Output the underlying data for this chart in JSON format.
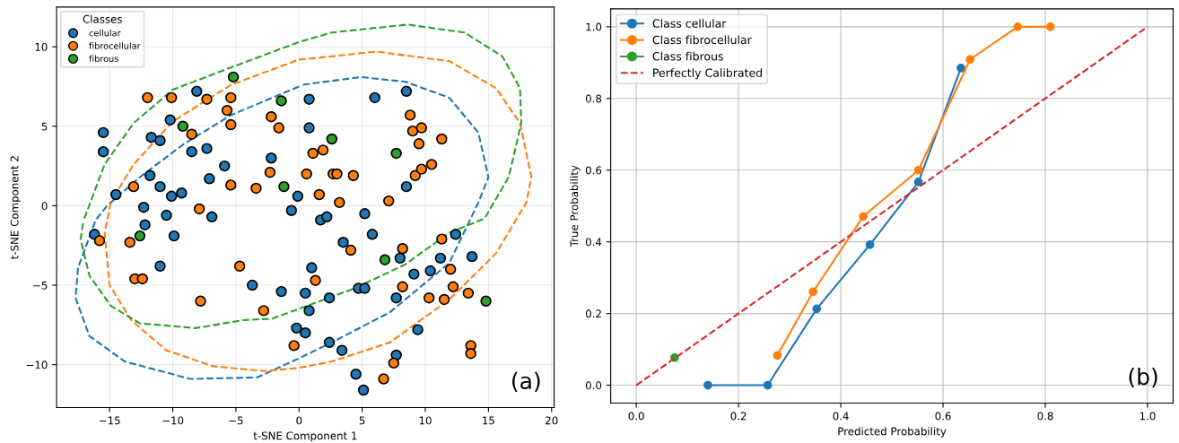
{
  "chart_data": [
    {
      "type": "scatter",
      "xlabel": "t-SNE Component 1",
      "ylabel": "t-SNE Component 2",
      "legend_title": "Classes",
      "legend": "top left",
      "grid": true,
      "marker": "circle",
      "xlim": [
        -19.2,
        20.2
      ],
      "ylim": [
        -12.7,
        12.5
      ],
      "xticks": [
        {
          "value": -15,
          "label": "−15"
        },
        {
          "value": -10,
          "label": "−10"
        },
        {
          "value": -5,
          "label": "−5"
        },
        0,
        5,
        10,
        15,
        20
      ],
      "yticks": [
        {
          "value": -10,
          "label": "−10"
        },
        {
          "value": -5,
          "label": "−5"
        },
        0,
        5,
        10
      ],
      "annotations": [
        "(a)"
      ],
      "series": [
        {
          "name": "cellular",
          "color": "#1f77b4",
          "x": [
            -16.2,
            -15.5,
            -15.5,
            -14.5,
            -11.8,
            -11.7,
            -11.0,
            -10.2,
            -11.0,
            -10.1,
            -9.3,
            -8.1,
            -8.5,
            -7.3,
            -7.1,
            -5.9,
            -12.3,
            -10.5,
            -6.9,
            -12.2,
            -9.9,
            -11.0,
            -3.7,
            -1.4,
            -0.6,
            -0.2,
            1.7,
            2.2,
            5.2,
            5.8,
            3.5,
            1.0,
            0.5,
            2.4,
            0.8,
            4.7,
            5.2,
            0.5,
            2.4,
            3.4,
            4.5,
            5.1,
            7.7,
            7.7,
            8.0,
            9.1,
            10.4,
            11.2,
            12.4,
            13.7,
            9.4,
            0.8,
            6.0,
            8.5,
            0.8,
            -2.2,
            8.5,
            -0.1
          ],
          "values": [
            -1.8,
            4.6,
            3.4,
            0.7,
            1.9,
            4.3,
            4.1,
            5.4,
            1.2,
            0.6,
            0.8,
            7.2,
            3.4,
            3.6,
            1.7,
            2.5,
            -0.1,
            -0.6,
            -0.7,
            -1.2,
            -1.9,
            -3.8,
            -5.0,
            -5.4,
            -0.3,
            -7.7,
            -0.9,
            -0.7,
            -0.5,
            -1.8,
            -2.3,
            -3.9,
            -5.5,
            -5.8,
            -6.6,
            -5.2,
            -5.2,
            -8.0,
            -8.6,
            -9.1,
            -10.6,
            -11.6,
            -9.4,
            -5.8,
            -3.3,
            -4.3,
            -4.1,
            -3.3,
            -1.8,
            -3.2,
            -7.8,
            6.7,
            6.8,
            7.2,
            4.9,
            3.0,
            1.2,
            0.6
          ]
        },
        {
          "name": "fibrocellular",
          "color": "#ff7f0e",
          "x": [
            -12.0,
            -10.1,
            -7.3,
            -5.4,
            -5.7,
            -5.4,
            -8.5,
            -13.1,
            -5.4,
            -3.4,
            -7.9,
            -2.2,
            -1.6,
            -2.3,
            -15.8,
            -13.4,
            -13.0,
            -12.4,
            -7.8,
            -4.7,
            -2.8,
            -0.4,
            1.1,
            1.9,
            0.6,
            2.7,
            3.0,
            4.3,
            1.6,
            3.2,
            7.1,
            8.8,
            9.0,
            9.7,
            9.5,
            11.3,
            9.2,
            9.7,
            10.5,
            4.1,
            8.2,
            1.3,
            8.2,
            11.3,
            12.0,
            12.2,
            10.3,
            11.5,
            13.4,
            13.6,
            13.6,
            7.5,
            6.7
          ],
          "values": [
            6.8,
            6.8,
            6.7,
            6.8,
            6.0,
            5.1,
            4.5,
            1.2,
            1.3,
            1.1,
            -0.2,
            5.6,
            4.9,
            2.1,
            -2.2,
            -2.3,
            -4.6,
            -4.6,
            -6.0,
            -3.8,
            -6.6,
            -8.8,
            3.3,
            3.5,
            2.0,
            2.0,
            2.0,
            1.9,
            0.7,
            0.2,
            0.3,
            5.7,
            4.7,
            4.9,
            3.9,
            4.2,
            1.9,
            2.3,
            2.6,
            -2.8,
            -2.7,
            -4.7,
            -5.1,
            -2.1,
            -4.0,
            -5.1,
            -5.8,
            -5.9,
            -5.5,
            -8.8,
            -9.3,
            -9.9,
            -10.9
          ]
        },
        {
          "name": "fibrous",
          "color": "#2ca02c",
          "x": [
            -5.2,
            -9.2,
            -1.4,
            -1.2,
            2.6,
            7.7,
            -12.6,
            6.8,
            14.8
          ],
          "values": [
            8.1,
            5.0,
            6.6,
            1.2,
            4.2,
            3.3,
            -1.9,
            -3.4,
            -6.0
          ]
        },
        {
          "type": "line",
          "line_style": "dashed",
          "marker": "none",
          "color": "#1f77b4",
          "x": [
            0.0,
            -5.4,
            -9.1,
            -12.6,
            -15.2,
            -16.1,
            -17.5,
            -17.7,
            -16.6,
            -13.8,
            -8.6,
            -3.3,
            0.0,
            2.6,
            7.2,
            11.9,
            14.2,
            15.0,
            14.2,
            11.9,
            8.4,
            4.9,
            0.2
          ],
          "values": [
            7.5,
            5.7,
            3.9,
            1.8,
            0.0,
            -0.9,
            -3.9,
            -5.8,
            -8.2,
            -9.8,
            -10.9,
            -10.8,
            -9.6,
            -8.6,
            -6.7,
            -3.6,
            0.2,
            1.8,
            4.6,
            6.8,
            7.8,
            8.1,
            7.6
          ]
        },
        {
          "type": "line",
          "line_style": "dashed",
          "marker": "none",
          "color": "#ff7f0e",
          "x": [
            -14.9,
            -15.4,
            -15.0,
            -13.3,
            -10.5,
            -6.8,
            -2.8,
            0.0,
            2.6,
            7.2,
            11.9,
            15.6,
            18.0,
            18.4,
            17.5,
            15.6,
            11.9,
            6.1,
            1.4,
            0.0,
            -5.4,
            -10.0,
            -13.1,
            -14.7
          ],
          "values": [
            0.2,
            -1.7,
            -5.0,
            -7.2,
            -9.1,
            -10.1,
            -10.4,
            -10.2,
            -9.8,
            -8.6,
            -5.9,
            -3.0,
            0.2,
            1.8,
            5.2,
            7.4,
            9.1,
            9.7,
            9.3,
            9.2,
            7.6,
            5.3,
            2.6,
            0.5
          ]
        },
        {
          "type": "line",
          "line_style": "dashed",
          "marker": "none",
          "color": "#2ca02c",
          "x": [
            -17.0,
            -15.4,
            -13.1,
            -10.0,
            -5.4,
            0.0,
            2.6,
            8.6,
            13.1,
            16.1,
            17.5,
            17.6,
            16.6,
            14.7,
            11.9,
            8.4,
            4.4,
            -2.1,
            -4.4,
            -8.2,
            -12.6,
            -14.9,
            -16.6,
            -17.3,
            -17.1
          ],
          "values": [
            -0.8,
            2.6,
            5.2,
            7.3,
            8.7,
            10.3,
            10.9,
            11.4,
            10.9,
            9.4,
            7.4,
            5.2,
            1.8,
            -0.8,
            -1.7,
            -3.7,
            -5.2,
            -7.1,
            -7.2,
            -7.7,
            -7.4,
            -6.3,
            -4.4,
            -2.1,
            -1.1
          ]
        }
      ]
    },
    {
      "type": "line",
      "xlabel": "Predicted Probability",
      "ylabel": "True Probability",
      "legend": "top left",
      "grid": true,
      "marker": "circle",
      "xlim": [
        -0.05,
        1.05
      ],
      "ylim": [
        -0.05,
        1.05
      ],
      "xticks": [
        {
          "value": 0,
          "label": "0.0"
        },
        {
          "value": 0.2,
          "label": "0.2"
        },
        {
          "value": 0.4,
          "label": "0.4"
        },
        {
          "value": 0.6,
          "label": "0.6"
        },
        {
          "value": 0.8,
          "label": "0.8"
        },
        {
          "value": 1,
          "label": "1.0"
        }
      ],
      "yticks": [
        {
          "value": 0,
          "label": "0.0"
        },
        {
          "value": 0.2,
          "label": "0.2"
        },
        {
          "value": 0.4,
          "label": "0.4"
        },
        {
          "value": 0.6,
          "label": "0.6"
        },
        {
          "value": 0.8,
          "label": "0.8"
        },
        {
          "value": 1,
          "label": "1.0"
        }
      ],
      "annotations": [
        "(b)"
      ],
      "series": [
        {
          "name": "Class cellular",
          "color": "#1f77b4",
          "x": [
            0.14,
            0.257,
            0.353,
            0.457,
            0.552,
            0.635
          ],
          "values": [
            0.0,
            0.0,
            0.213,
            0.392,
            0.567,
            0.885
          ]
        },
        {
          "name": "Class fibrocellular",
          "color": "#ff7f0e",
          "x": [
            0.276,
            0.346,
            0.444,
            0.552,
            0.653,
            0.746,
            0.81
          ],
          "values": [
            0.083,
            0.261,
            0.471,
            0.6,
            0.909,
            1.0,
            1.0
          ]
        },
        {
          "name": "Class fibrous",
          "color": "#2ca02c",
          "x": [
            0.075
          ],
          "values": [
            0.077
          ]
        },
        {
          "name": "Perfectly Calibrated",
          "color": "#d62728",
          "line_style": "dashed",
          "marker": "none",
          "x": [
            0,
            1
          ],
          "values": [
            0,
            1
          ]
        }
      ]
    }
  ]
}
